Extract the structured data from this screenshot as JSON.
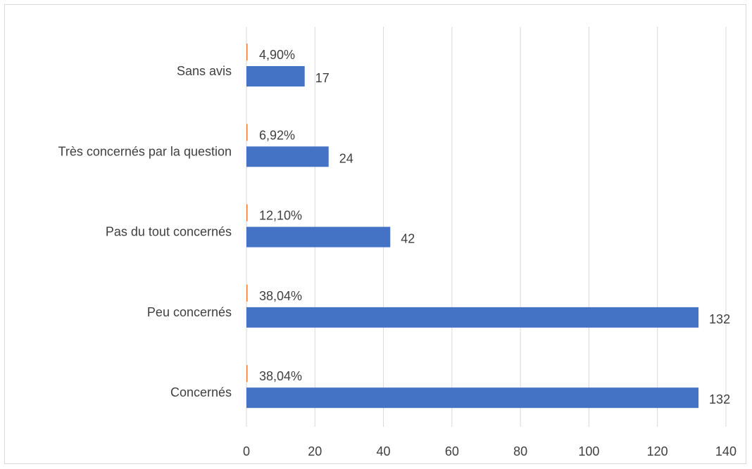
{
  "chart_data": {
    "type": "bar",
    "orientation": "horizontal",
    "categories": [
      "Sans avis",
      "Très concernés par la question",
      "Pas du tout concernés",
      "Peu concernés",
      "Concernés"
    ],
    "series": [
      {
        "values": [
          17,
          24,
          42,
          132,
          132
        ],
        "value_labels": [
          "17",
          "24",
          "42",
          "132",
          "132"
        ],
        "color": "#4472C4"
      },
      {
        "percent_labels": [
          "4,90%",
          "6,92%",
          "12,10%",
          "38,04%",
          "38,04%"
        ],
        "color": "#ED7D31"
      }
    ],
    "xlim": [
      0,
      140
    ],
    "x_ticks": [
      "0",
      "20",
      "40",
      "60",
      "80",
      "100",
      "120",
      "140"
    ],
    "x_tick_values": [
      0,
      20,
      40,
      60,
      80,
      100,
      120,
      140
    ],
    "grid": "vertical",
    "legend": "none",
    "colors": {
      "bar": "#4472C4",
      "secondary_bar": "#ED7D31",
      "gridline": "#d9d9d9",
      "text": "#404040"
    }
  }
}
